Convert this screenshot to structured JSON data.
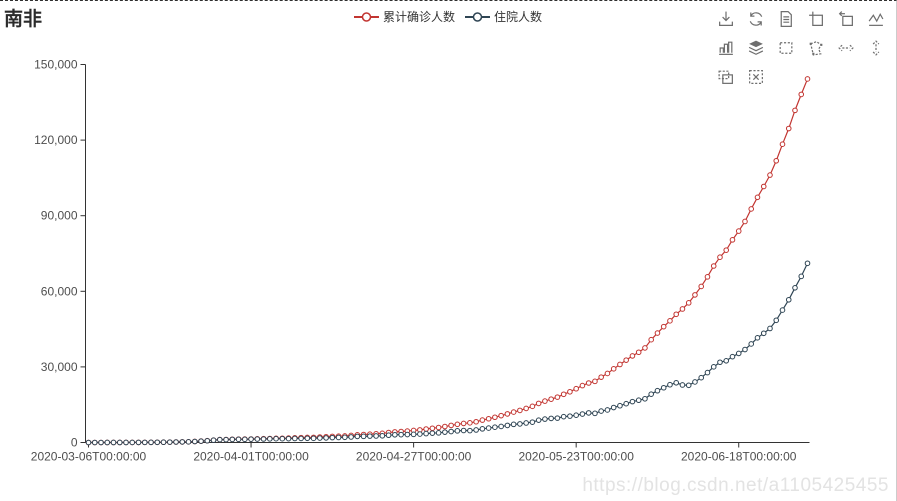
{
  "header": {
    "title": "南非"
  },
  "legend": [
    {
      "label": "累计确诊人数",
      "color": "#c23531"
    },
    {
      "label": "住院人数",
      "color": "#2f4554"
    }
  ],
  "toolbar": {
    "icons": [
      "save-as-image",
      "restore",
      "data-view",
      "data-zoom",
      "data-zoom-back",
      "magic-type-line",
      "magic-type-bar",
      "magic-type-stack",
      "brush-rect",
      "brush-polygon",
      "brush-line-x",
      "brush-line-y",
      "brush-keep",
      "brush-clear"
    ]
  },
  "watermark": {
    "text": "https://blog.csdn.net/a1105425455"
  },
  "chart_data": {
    "type": "line",
    "title": "南非",
    "legend_position": "top-center",
    "grid": false,
    "ylim": [
      0,
      150000
    ],
    "y_ticks": [
      0,
      30000,
      60000,
      90000,
      120000,
      150000
    ],
    "y_tick_labels": [
      "0",
      "30,000",
      "60,000",
      "90,000",
      "120,000",
      "150,000"
    ],
    "x_tick_indices": [
      0,
      26,
      52,
      78,
      104
    ],
    "x_tick_labels": [
      "2020-03-06T00:00:00",
      "2020-04-01T00:00:00",
      "2020-04-27T00:00:00",
      "2020-05-23T00:00:00",
      "2020-06-18T00:00:00"
    ],
    "point_count": 116,
    "dates": [
      "2020-03-06",
      "2020-03-07",
      "2020-03-08",
      "2020-03-09",
      "2020-03-10",
      "2020-03-11",
      "2020-03-12",
      "2020-03-13",
      "2020-03-14",
      "2020-03-15",
      "2020-03-16",
      "2020-03-17",
      "2020-03-18",
      "2020-03-19",
      "2020-03-20",
      "2020-03-21",
      "2020-03-22",
      "2020-03-23",
      "2020-03-24",
      "2020-03-25",
      "2020-03-26",
      "2020-03-27",
      "2020-03-28",
      "2020-03-29",
      "2020-03-30",
      "2020-03-31",
      "2020-04-01",
      "2020-04-02",
      "2020-04-03",
      "2020-04-04",
      "2020-04-05",
      "2020-04-06",
      "2020-04-07",
      "2020-04-08",
      "2020-04-09",
      "2020-04-10",
      "2020-04-11",
      "2020-04-12",
      "2020-04-13",
      "2020-04-14",
      "2020-04-15",
      "2020-04-16",
      "2020-04-17",
      "2020-04-18",
      "2020-04-19",
      "2020-04-20",
      "2020-04-21",
      "2020-04-22",
      "2020-04-23",
      "2020-04-24",
      "2020-04-25",
      "2020-04-26",
      "2020-04-27",
      "2020-04-28",
      "2020-04-29",
      "2020-04-30",
      "2020-05-01",
      "2020-05-02",
      "2020-05-03",
      "2020-05-04",
      "2020-05-05",
      "2020-05-06",
      "2020-05-07",
      "2020-05-08",
      "2020-05-09",
      "2020-05-10",
      "2020-05-11",
      "2020-05-12",
      "2020-05-13",
      "2020-05-14",
      "2020-05-15",
      "2020-05-16",
      "2020-05-17",
      "2020-05-18",
      "2020-05-19",
      "2020-05-20",
      "2020-05-21",
      "2020-05-22",
      "2020-05-23",
      "2020-05-24",
      "2020-05-25",
      "2020-05-26",
      "2020-05-27",
      "2020-05-28",
      "2020-05-29",
      "2020-05-30",
      "2020-05-31",
      "2020-06-01",
      "2020-06-02",
      "2020-06-03",
      "2020-06-04",
      "2020-06-05",
      "2020-06-06",
      "2020-06-07",
      "2020-06-08",
      "2020-06-09",
      "2020-06-10",
      "2020-06-11",
      "2020-06-12",
      "2020-06-13",
      "2020-06-14",
      "2020-06-15",
      "2020-06-16",
      "2020-06-17",
      "2020-06-18",
      "2020-06-19",
      "2020-06-20",
      "2020-06-21",
      "2020-06-22",
      "2020-06-23",
      "2020-06-24",
      "2020-06-25",
      "2020-06-26",
      "2020-06-27",
      "2020-06-28",
      "2020-06-29"
    ],
    "series": [
      {
        "name": "累计确诊人数",
        "color": "#c23531",
        "values": [
          2,
          2,
          3,
          7,
          13,
          13,
          17,
          24,
          38,
          51,
          62,
          85,
          116,
          150,
          202,
          240,
          274,
          402,
          554,
          709,
          927,
          1170,
          1187,
          1280,
          1326,
          1353,
          1380,
          1462,
          1505,
          1585,
          1655,
          1686,
          1749,
          1845,
          1934,
          2003,
          2028,
          2173,
          2272,
          2415,
          2506,
          2605,
          2783,
          3034,
          3158,
          3300,
          3465,
          3635,
          3953,
          4220,
          4361,
          4546,
          4793,
          4996,
          5350,
          5647,
          5951,
          6336,
          6783,
          7220,
          7572,
          7808,
          8232,
          8895,
          9420,
          10015,
          10652,
          11350,
          12074,
          12739,
          13524,
          14355,
          15515,
          16433,
          17200,
          18003,
          19137,
          20125,
          21343,
          22583,
          23615,
          24264,
          25937,
          27403,
          29240,
          30967,
          32683,
          34357,
          35812,
          37525,
          40792,
          43434,
          45973,
          48285,
          50879,
          52991,
          55421,
          58568,
          61927,
          65736,
          70038,
          73533,
          76334,
          80412,
          83890,
          87715,
          92681,
          97302,
          101590,
          106108,
          111796,
          118375,
          124590,
          131800,
          138134,
          144264
        ]
      },
      {
        "name": "住院人数",
        "color": "#2f4554",
        "values": [
          2,
          2,
          3,
          7,
          13,
          13,
          16,
          23,
          37,
          50,
          61,
          83,
          112,
          146,
          196,
          233,
          267,
          395,
          546,
          698,
          905,
          1138,
          1145,
          1232,
          1264,
          1257,
          1325,
          1366,
          1391,
          1449,
          1506,
          1511,
          1527,
          1604,
          1620,
          1663,
          1654,
          1765,
          1822,
          1939,
          1995,
          2059,
          2195,
          2418,
          2441,
          2529,
          2589,
          2661,
          2886,
          3056,
          3115,
          3163,
          3230,
          3344,
          3533,
          3710,
          3836,
          4107,
          4357,
          4625,
          4760,
          4717,
          4971,
          5422,
          5723,
          6069,
          6373,
          6779,
          7201,
          7382,
          7754,
          8080,
          8858,
          9281,
          9561,
          9677,
          10248,
          10464,
          10832,
          11302,
          11742,
          11563,
          12469,
          12919,
          13874,
          14593,
          15400,
          16217,
          16778,
          17356,
          19178,
          20552,
          21722,
          22923,
          23700,
          22823,
          22706,
          24032,
          25712,
          27743,
          30027,
          31845,
          32418,
          34055,
          35343,
          36897,
          39111,
          41541,
          43344,
          45244,
          48503,
          52550,
          56635,
          61387,
          65930,
          71121
        ]
      }
    ]
  }
}
